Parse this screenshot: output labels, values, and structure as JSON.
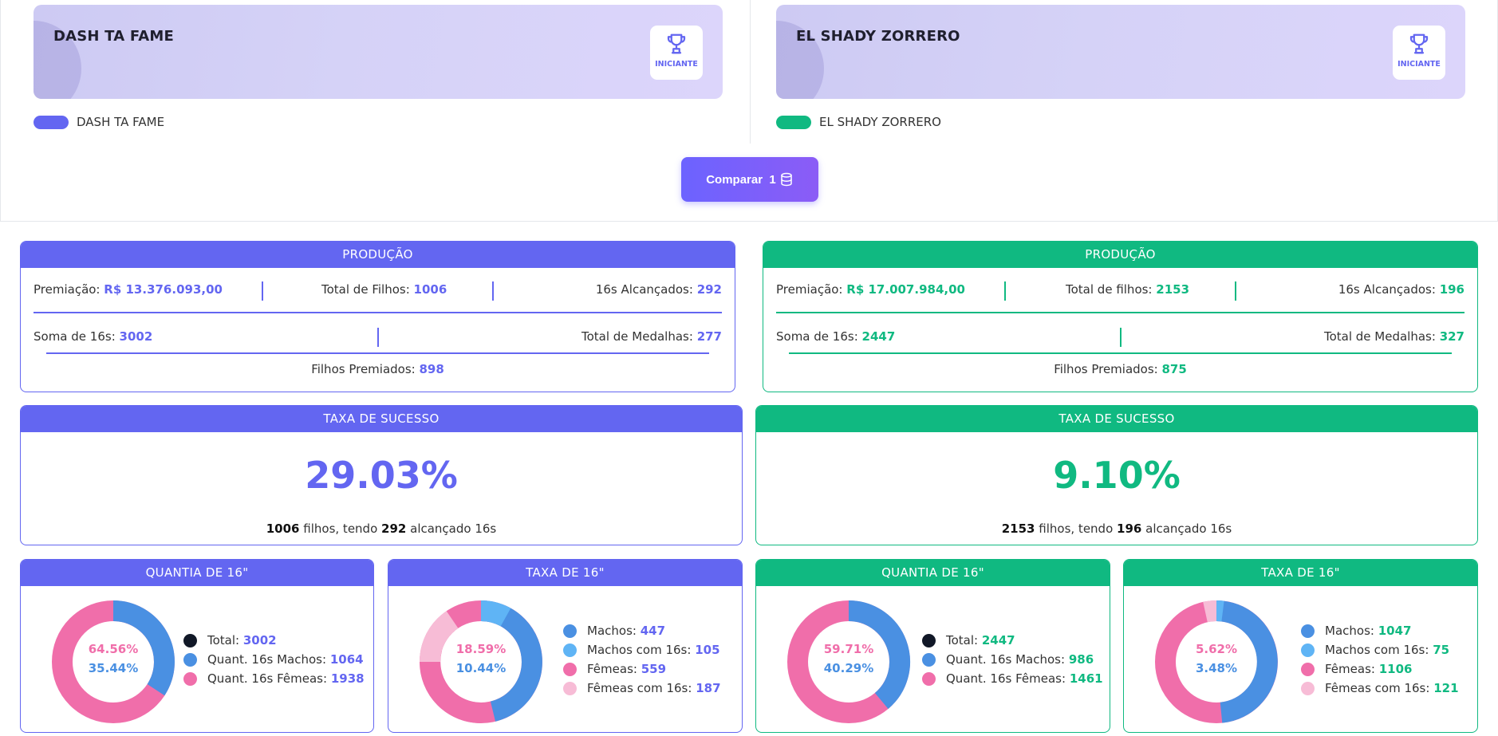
{
  "horses": [
    {
      "name": "DASH TA FAME",
      "level": "INICIANTE",
      "legend": "DASH TA FAME",
      "color": "#6366f1"
    },
    {
      "name": "EL SHADY ZORRERO",
      "level": "INICIANTE",
      "legend": "EL SHADY ZORRERO",
      "color": "#10b981"
    }
  ],
  "compare_button": {
    "label": "Comparar",
    "count": "1"
  },
  "production": [
    {
      "title": "PRODUÇÃO",
      "premiacao_label": "Premiação:",
      "premiacao": "R$ 13.376.093,00",
      "filhos_label": "Total de Filhos:",
      "filhos": "1006",
      "alcancados_label": "16s Alcançados:",
      "alcancados": "292",
      "soma_label": "Soma de 16s:",
      "soma": "3002",
      "medalhas_label": "Total de Medalhas:",
      "medalhas": "277",
      "premiados_label": "Filhos Premiados:",
      "premiados": "898"
    },
    {
      "title": "PRODUÇÃO",
      "premiacao_label": "Premiação:",
      "premiacao": "R$ 17.007.984,00",
      "filhos_label": "Total de filhos:",
      "filhos": "2153",
      "alcancados_label": "16s Alcançados:",
      "alcancados": "196",
      "soma_label": "Soma de 16s:",
      "soma": "2447",
      "medalhas_label": "Total de Medalhas:",
      "medalhas": "327",
      "premiados_label": "Filhos Premiados:",
      "premiados": "875"
    }
  ],
  "success": [
    {
      "title": "TAXA DE SUCESSO",
      "rate": "29.03%",
      "filhos": "1006",
      "t1": "filhos, tendo",
      "alc": "292",
      "t2": "alcançado 16s"
    },
    {
      "title": "TAXA DE SUCESSO",
      "rate": "9.10%",
      "filhos": "2153",
      "t1": "filhos, tendo",
      "alc": "196",
      "t2": "alcançado 16s"
    }
  ],
  "donuts": [
    {
      "title": "QUANTIA DE 16\"",
      "p1": "64.56%",
      "p2": "35.44%",
      "legend": [
        {
          "label": "Total:",
          "value": "3002",
          "color": "#111827"
        },
        {
          "label": "Quant. 16s Machos:",
          "value": "1064",
          "color": "#4a90e2"
        },
        {
          "label": "Quant. 16s Fêmeas:",
          "value": "1938",
          "color": "#f06eaa"
        }
      ]
    },
    {
      "title": "TAXA DE 16\"",
      "p1": "18.59%",
      "p2": "10.44%",
      "legend": [
        {
          "label": "Machos:",
          "value": "447",
          "color": "#4a90e2"
        },
        {
          "label": "Machos com 16s:",
          "value": "105",
          "color": "#5fb4f5"
        },
        {
          "label": "Fêmeas:",
          "value": "559",
          "color": "#f06eaa"
        },
        {
          "label": "Fêmeas com 16s:",
          "value": "187",
          "color": "#f7bcd6"
        }
      ]
    },
    {
      "title": "QUANTIA DE 16\"",
      "p1": "59.71%",
      "p2": "40.29%",
      "legend": [
        {
          "label": "Total:",
          "value": "2447",
          "color": "#111827"
        },
        {
          "label": "Quant. 16s Machos:",
          "value": "986",
          "color": "#4a90e2"
        },
        {
          "label": "Quant. 16s Fêmeas:",
          "value": "1461",
          "color": "#f06eaa"
        }
      ]
    },
    {
      "title": "TAXA DE 16\"",
      "p1": "5.62%",
      "p2": "3.48%",
      "legend": [
        {
          "label": "Machos:",
          "value": "1047",
          "color": "#4a90e2"
        },
        {
          "label": "Machos com 16s:",
          "value": "75",
          "color": "#5fb4f5"
        },
        {
          "label": "Fêmeas:",
          "value": "1106",
          "color": "#f06eaa"
        },
        {
          "label": "Fêmeas com 16s:",
          "value": "121",
          "color": "#f7bcd6"
        }
      ]
    }
  ]
}
